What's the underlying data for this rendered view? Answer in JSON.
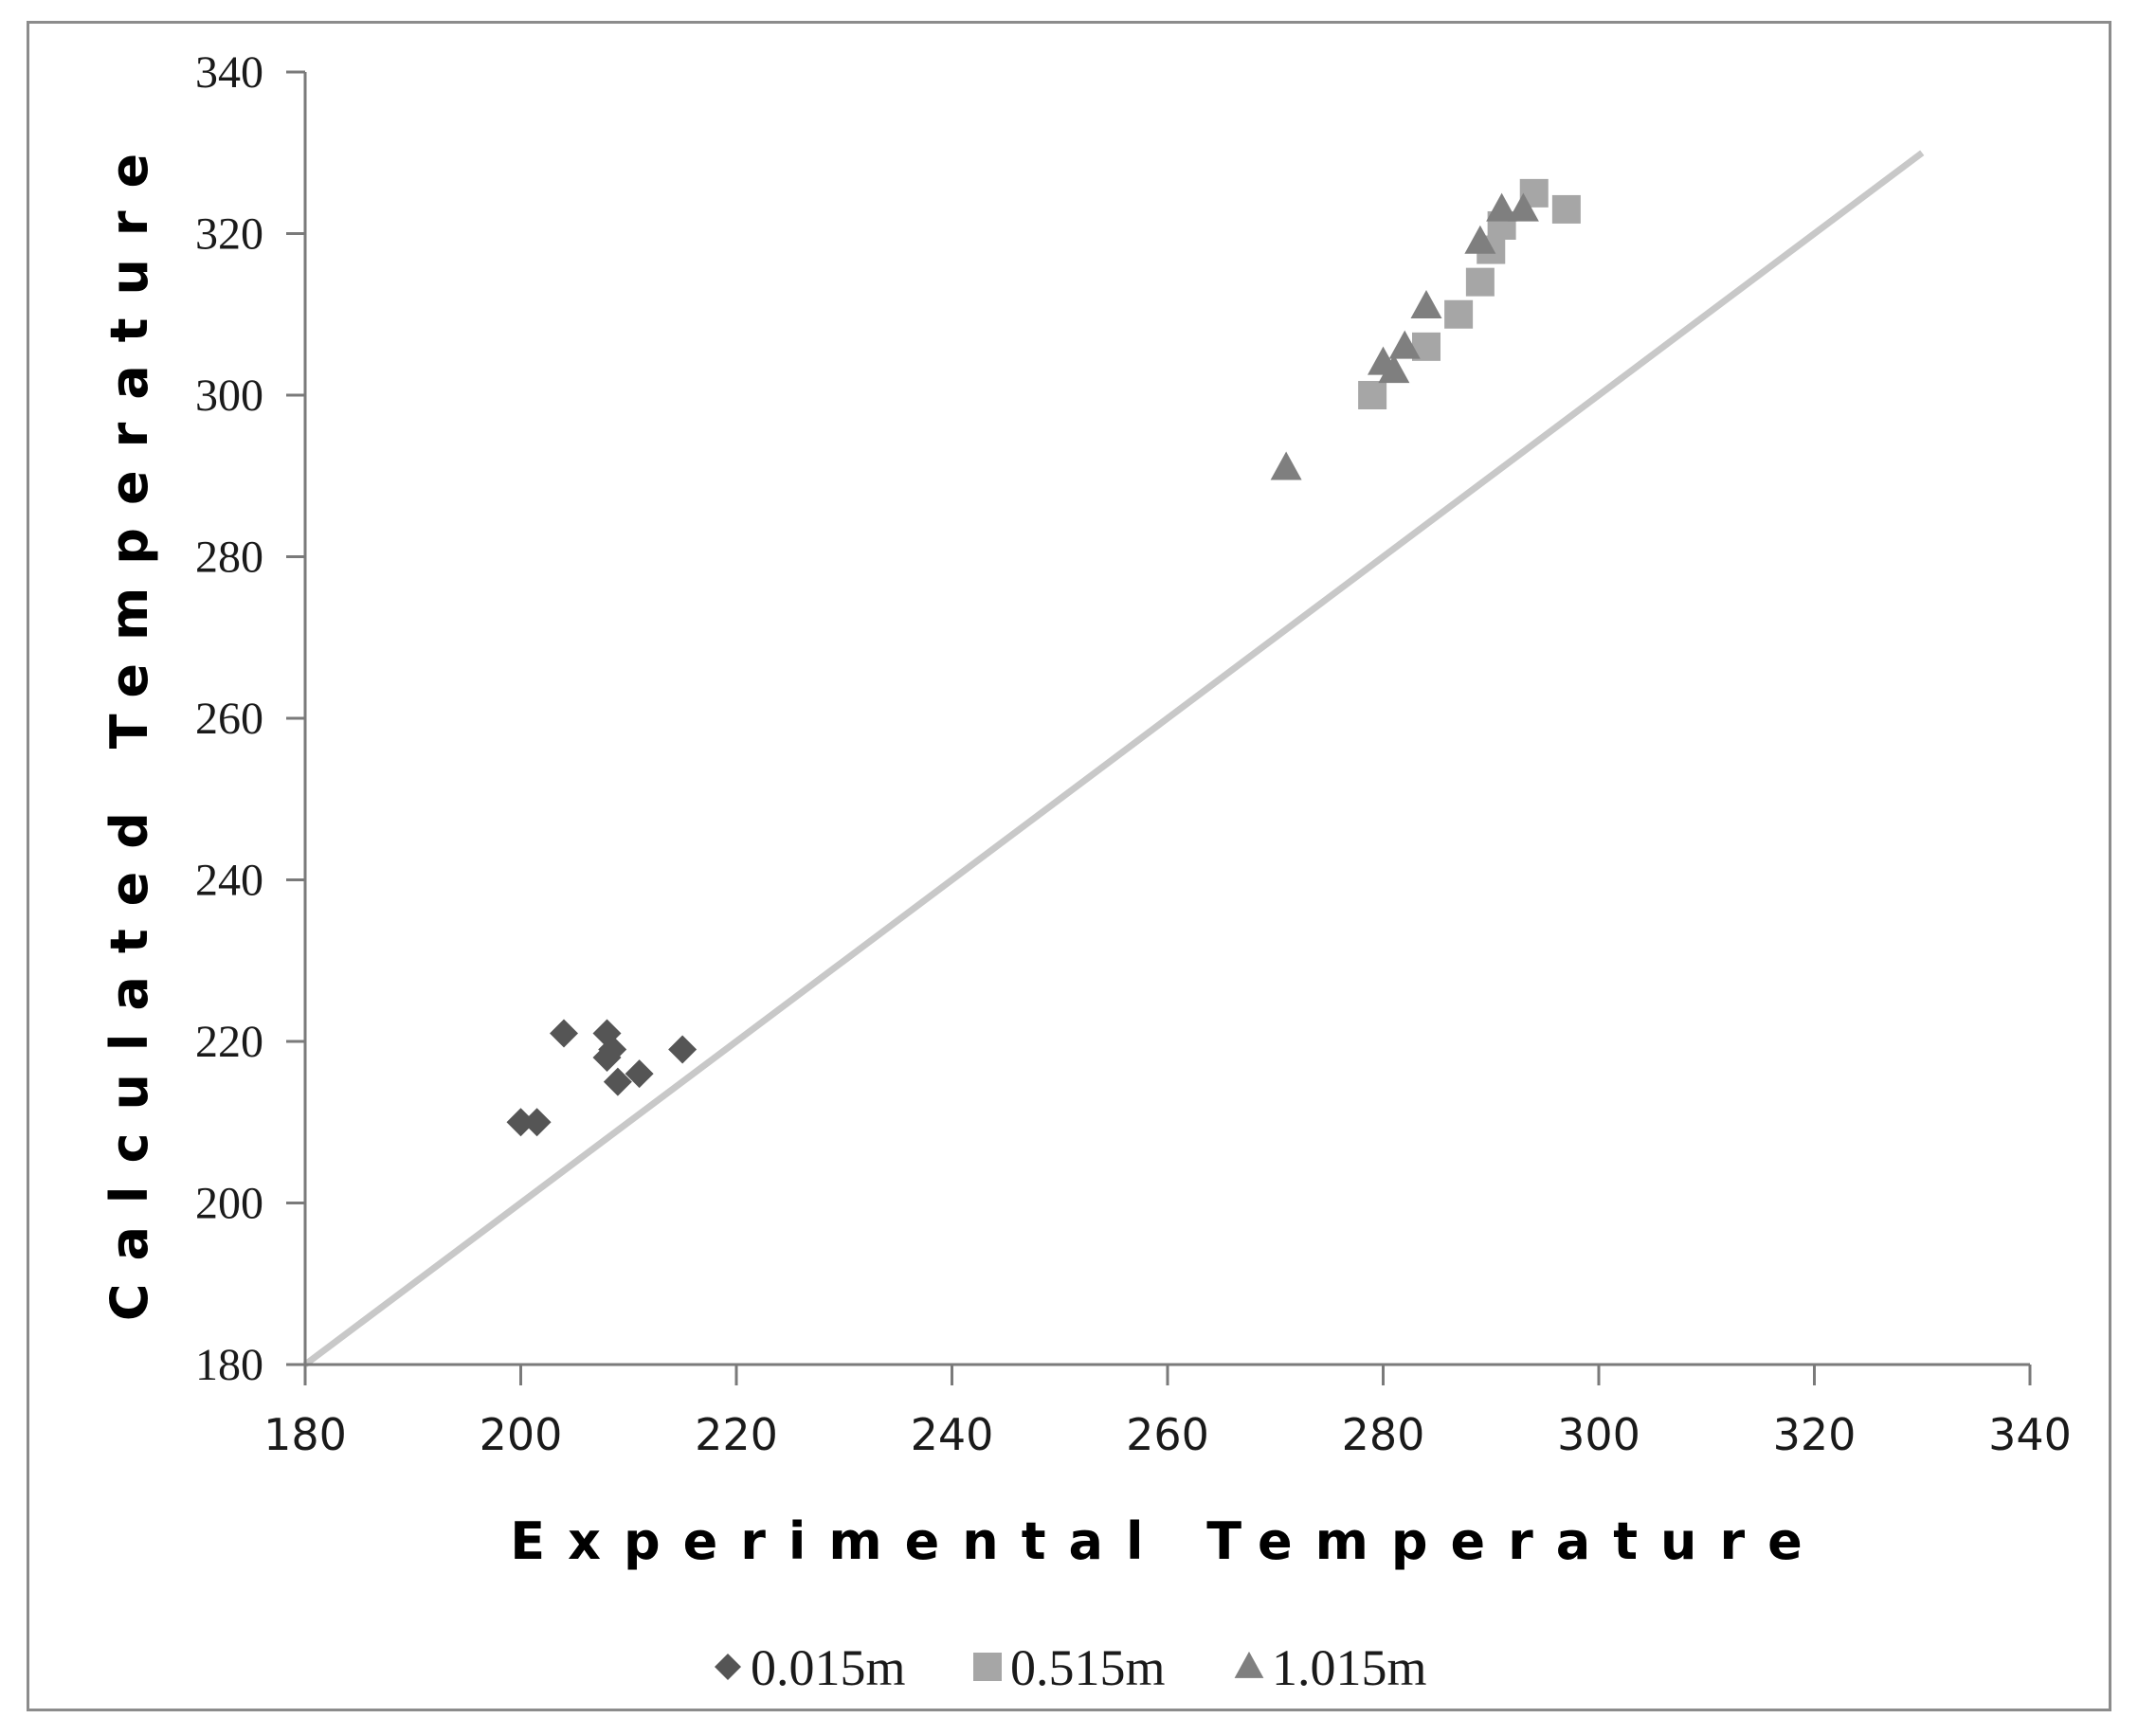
{
  "chart_data": {
    "type": "scatter",
    "xlabel": "Experimental Temperature",
    "ylabel": "Calculated Temperature",
    "xlim": [
      180,
      340
    ],
    "ylim": [
      180,
      340
    ],
    "x_ticks": [
      180,
      200,
      220,
      240,
      260,
      280,
      300,
      320,
      340
    ],
    "y_ticks": [
      180,
      200,
      220,
      240,
      260,
      280,
      300,
      320,
      340
    ],
    "grid": false,
    "legend_position": "bottom",
    "reference_line": {
      "x": [
        180,
        330
      ],
      "y": [
        180,
        330
      ],
      "color": "#c8c8c8"
    },
    "series": [
      {
        "name": "0.015m",
        "marker": "diamond",
        "color": "#555555",
        "points": [
          {
            "x": 200,
            "y": 210
          },
          {
            "x": 201.5,
            "y": 210
          },
          {
            "x": 204,
            "y": 221
          },
          {
            "x": 208,
            "y": 221
          },
          {
            "x": 208.5,
            "y": 219
          },
          {
            "x": 208,
            "y": 218
          },
          {
            "x": 209,
            "y": 215
          },
          {
            "x": 211,
            "y": 216
          },
          {
            "x": 215,
            "y": 219
          }
        ]
      },
      {
        "name": "0.515m",
        "marker": "square",
        "color": "#a6a6a6",
        "points": [
          {
            "x": 279,
            "y": 300
          },
          {
            "x": 284,
            "y": 306
          },
          {
            "x": 287,
            "y": 310
          },
          {
            "x": 289,
            "y": 314
          },
          {
            "x": 290,
            "y": 318
          },
          {
            "x": 291,
            "y": 321
          },
          {
            "x": 294,
            "y": 325
          },
          {
            "x": 297,
            "y": 323
          }
        ]
      },
      {
        "name": "1.015m",
        "marker": "triangle",
        "color": "#7f7f7f",
        "points": [
          {
            "x": 271,
            "y": 291
          },
          {
            "x": 280,
            "y": 304
          },
          {
            "x": 281,
            "y": 303
          },
          {
            "x": 282,
            "y": 306
          },
          {
            "x": 284,
            "y": 311
          },
          {
            "x": 289,
            "y": 319
          },
          {
            "x": 291,
            "y": 323
          },
          {
            "x": 293,
            "y": 323
          }
        ]
      }
    ]
  }
}
